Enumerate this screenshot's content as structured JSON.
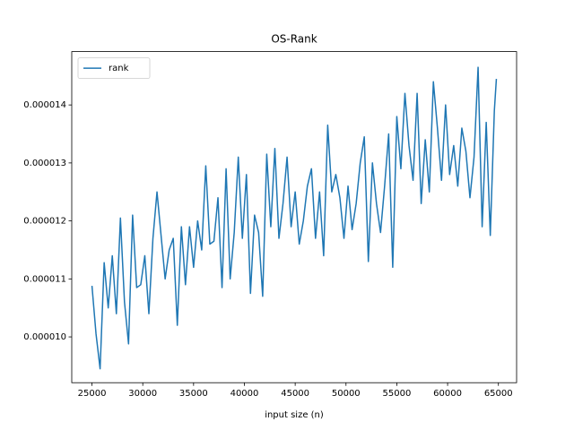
{
  "chart_data": {
    "type": "line",
    "title": "OS-Rank",
    "xlabel": "input size (n)",
    "legend": "upper left",
    "xlim": [
      23010,
      66790
    ],
    "ylim": [
      9.21e-06,
      1.492e-05
    ],
    "xticks": [
      25000,
      30000,
      35000,
      40000,
      45000,
      50000,
      55000,
      60000,
      65000
    ],
    "yticks": [
      {
        "value": 1e-05,
        "label": "0.000010"
      },
      {
        "value": 1.1e-05,
        "label": "0.000011"
      },
      {
        "value": 1.2e-05,
        "label": "0.000012"
      },
      {
        "value": 1.3e-05,
        "label": "0.000013"
      },
      {
        "value": 1.4e-05,
        "label": "0.000014"
      }
    ],
    "x": [
      25000,
      25400,
      25800,
      26200,
      26600,
      27000,
      27400,
      27800,
      28200,
      28600,
      29000,
      29400,
      29800,
      30200,
      30600,
      31000,
      31400,
      31800,
      32200,
      32600,
      33000,
      33400,
      33800,
      34200,
      34600,
      35000,
      35400,
      35800,
      36200,
      36600,
      37000,
      37400,
      37800,
      38200,
      38600,
      39000,
      39400,
      39800,
      40200,
      40600,
      41000,
      41400,
      41800,
      42200,
      42600,
      43000,
      43400,
      43800,
      44200,
      44600,
      45000,
      45400,
      45800,
      46200,
      46600,
      47000,
      47400,
      47800,
      48200,
      48600,
      49000,
      49400,
      49800,
      50200,
      50600,
      51000,
      51400,
      51800,
      52200,
      52600,
      53000,
      53400,
      53800,
      54200,
      54600,
      55000,
      55400,
      55800,
      56200,
      56600,
      57000,
      57400,
      57800,
      58200,
      58600,
      59000,
      59400,
      59800,
      60200,
      60600,
      61000,
      61400,
      61800,
      62200,
      62600,
      63000,
      63400,
      63800,
      64200,
      64600,
      64800
    ],
    "series": [
      {
        "name": "rank",
        "color": "#1f77b4",
        "values": [
          1.088e-05,
          1.005e-05,
          9.45e-06,
          1.128e-05,
          1.05e-05,
          1.14e-05,
          1.04e-05,
          1.205e-05,
          1.06e-05,
          9.88e-06,
          1.21e-05,
          1.085e-05,
          1.09e-05,
          1.14e-05,
          1.04e-05,
          1.17e-05,
          1.25e-05,
          1.175e-05,
          1.1e-05,
          1.15e-05,
          1.17e-05,
          1.02e-05,
          1.19e-05,
          1.09e-05,
          1.19e-05,
          1.12e-05,
          1.2e-05,
          1.15e-05,
          1.295e-05,
          1.16e-05,
          1.165e-05,
          1.24e-05,
          1.085e-05,
          1.29e-05,
          1.1e-05,
          1.18e-05,
          1.31e-05,
          1.17e-05,
          1.28e-05,
          1.075e-05,
          1.21e-05,
          1.18e-05,
          1.07e-05,
          1.315e-05,
          1.19e-05,
          1.325e-05,
          1.17e-05,
          1.23e-05,
          1.31e-05,
          1.19e-05,
          1.25e-05,
          1.16e-05,
          1.2e-05,
          1.26e-05,
          1.29e-05,
          1.17e-05,
          1.25e-05,
          1.14e-05,
          1.365e-05,
          1.25e-05,
          1.28e-05,
          1.24e-05,
          1.17e-05,
          1.26e-05,
          1.185e-05,
          1.23e-05,
          1.3e-05,
          1.345e-05,
          1.13e-05,
          1.3e-05,
          1.23e-05,
          1.18e-05,
          1.26e-05,
          1.35e-05,
          1.12e-05,
          1.38e-05,
          1.29e-05,
          1.42e-05,
          1.33e-05,
          1.27e-05,
          1.42e-05,
          1.23e-05,
          1.34e-05,
          1.25e-05,
          1.44e-05,
          1.36e-05,
          1.27e-05,
          1.4e-05,
          1.28e-05,
          1.33e-05,
          1.26e-05,
          1.36e-05,
          1.32e-05,
          1.24e-05,
          1.31e-05,
          1.465e-05,
          1.19e-05,
          1.37e-05,
          1.175e-05,
          1.39e-05,
          1.445e-05
        ]
      }
    ]
  }
}
